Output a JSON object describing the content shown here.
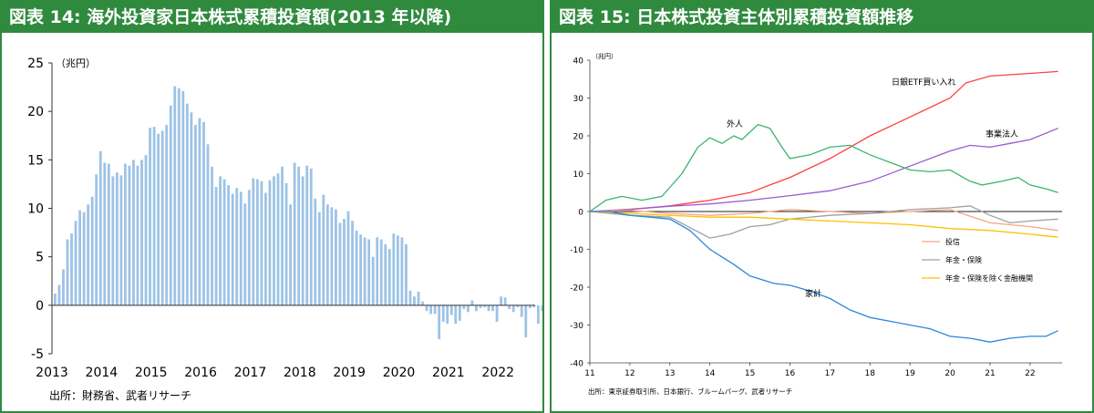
{
  "panels": {
    "left_title": "図表 14: 海外投資家日本株式累積投資額(2013 年以降)",
    "right_title": "図表 15: 日本株式投資主体別累積投資額推移",
    "left_source": "出所：財務省、武者リサーチ",
    "right_source": "出所：東京証券取引所、日本銀行、ブルームバーグ、武者リサーチ"
  },
  "colors": {
    "header_green": "#2f8a3e",
    "bar_blue": "#9dc3e6",
    "line_red": "#ff4040",
    "line_purple": "#9b59d0",
    "line_green": "#3cb371",
    "line_blue": "#2e86de",
    "line_orange": "#f4a582",
    "line_gray": "#a0a0a0",
    "line_yellow": "#ffc000"
  },
  "chart_data": [
    {
      "type": "bar",
      "title": "",
      "unit_label": "（兆円）",
      "ylim": [
        -5,
        25
      ],
      "yticks": [
        -5,
        0,
        5,
        10,
        15,
        20,
        25
      ],
      "xlim": [
        2013,
        2022.75
      ],
      "xticks": [
        "2013",
        "2014",
        "2015",
        "2016",
        "2017",
        "2018",
        "2019",
        "2020",
        "2021",
        "2022"
      ],
      "series": [
        {
          "start": 2013.0,
          "step": 0.08333,
          "values": [
            1.2,
            2.1,
            3.7,
            6.8,
            7.4,
            8.7,
            9.8,
            9.6,
            10.4,
            11.2,
            13.5,
            15.9,
            14.7,
            14.6,
            13.3,
            13.7,
            13.4,
            14.6,
            14.4,
            15.0,
            14.4,
            15.0,
            15.5,
            18.3,
            18.4,
            17.7,
            18.0,
            18.6,
            20.6,
            22.6,
            22.4,
            22.1,
            20.8,
            19.9,
            18.6,
            19.3,
            18.9,
            16.6,
            14.3,
            12.2,
            13.3,
            13.0,
            12.4,
            11.5,
            12.1,
            11.7,
            10.5,
            11.9,
            13.1,
            13.0,
            12.8,
            11.6,
            12.9,
            13.3,
            13.6,
            14.3,
            12.6,
            10.4,
            14.7,
            14.3,
            13.3,
            14.4,
            14.1,
            11.0,
            9.6,
            11.4,
            10.4,
            10.1,
            9.9,
            8.5,
            8.9,
            9.7,
            8.7,
            7.7,
            7.3,
            7.0,
            6.8,
            5.0,
            7.0,
            6.8,
            6.3,
            5.8,
            7.4,
            7.2,
            7.0,
            6.3,
            1.5,
            0.9,
            1.4,
            0.4,
            -0.6,
            -0.9,
            -0.9,
            -3.5,
            -1.7,
            -1.9,
            -1.0,
            -1.9,
            -1.6,
            -0.4,
            -0.7,
            0.5,
            -0.6,
            -0.3,
            -0.2,
            -0.6,
            -0.6,
            -1.7,
            0.9,
            0.8,
            -0.4,
            -0.7,
            -0.2,
            -1.2,
            -3.3,
            -0.3,
            -0.2,
            -1.9,
            -0.6,
            -1.3,
            -1.6
          ]
        }
      ],
      "source": "出所：財務省、武者リサーチ"
    },
    {
      "type": "line",
      "title": "",
      "unit_label": "（兆円）",
      "ylim": [
        -40,
        40
      ],
      "yticks": [
        -40,
        -30,
        -20,
        -10,
        0,
        10,
        20,
        30,
        40
      ],
      "xlim": [
        11,
        22.8
      ],
      "xticks": [
        "11",
        "12",
        "13",
        "14",
        "15",
        "16",
        "17",
        "18",
        "19",
        "20",
        "21",
        "22"
      ],
      "series": [
        {
          "name": "日銀ETF買い入れ",
          "color": "#ff4040",
          "x": [
            11,
            12,
            13,
            14,
            15,
            15.5,
            16,
            17,
            18,
            19,
            20,
            20.4,
            21,
            22,
            22.7
          ],
          "y": [
            0,
            0.5,
            1.5,
            3,
            5,
            7,
            9,
            14,
            20,
            25,
            30,
            34,
            35.8,
            36.5,
            37
          ]
        },
        {
          "name": "事業法人",
          "color": "#9b59d0",
          "x": [
            11,
            12,
            13,
            14,
            15,
            16,
            17,
            18,
            19,
            20,
            20.5,
            21,
            21.5,
            22,
            22.7
          ],
          "y": [
            0,
            0.6,
            1.4,
            2,
            3,
            4.2,
            5.5,
            8,
            12,
            16,
            17.5,
            17,
            18,
            19,
            22
          ]
        },
        {
          "name": "外人",
          "color": "#3cb371",
          "x": [
            11,
            11.4,
            11.8,
            12.3,
            12.8,
            13.3,
            13.7,
            14,
            14.3,
            14.6,
            14.8,
            15,
            15.2,
            15.5,
            15.8,
            16,
            16.5,
            17,
            17.5,
            18,
            18.5,
            19,
            19.5,
            20,
            20.5,
            20.8,
            21.3,
            21.7,
            22,
            22.4,
            22.7
          ],
          "y": [
            0,
            3,
            4,
            3,
            4,
            10,
            17,
            19.5,
            18,
            20,
            19,
            21,
            23,
            22,
            17,
            14,
            15,
            17,
            17.5,
            15,
            13,
            11,
            10.5,
            11,
            8,
            7,
            8,
            9,
            7,
            6,
            5
          ]
        },
        {
          "name": "投信",
          "color": "#f4a582",
          "x": [
            11,
            12,
            13,
            14,
            15,
            16,
            17,
            18,
            19,
            20,
            21,
            22,
            22.7
          ],
          "y": [
            0,
            0.3,
            -0.5,
            -1,
            -0.5,
            0.5,
            0,
            -0.5,
            0,
            0.5,
            -3,
            -4,
            -5
          ]
        },
        {
          "name": "年金・保険",
          "color": "#a0a0a0",
          "x": [
            11,
            12,
            13,
            14,
            14.5,
            15,
            15.5,
            16,
            17,
            18,
            19,
            20,
            20.5,
            21,
            21.5,
            22,
            22.7
          ],
          "y": [
            0,
            -1,
            -1.5,
            -7,
            -6,
            -4,
            -3.5,
            -2,
            -1,
            -0.5,
            0.5,
            1,
            1.5,
            -1,
            -3,
            -2.5,
            -2
          ]
        },
        {
          "name": "年金・保険を除く金融機関",
          "color": "#ffc000",
          "x": [
            11,
            12,
            13,
            14,
            15,
            16,
            17,
            18,
            19,
            20,
            21,
            22,
            22.7
          ],
          "y": [
            0,
            -0.5,
            -1,
            -1.5,
            -1.5,
            -2,
            -2.5,
            -3,
            -3.5,
            -4.5,
            -5,
            -6,
            -6.8
          ]
        },
        {
          "name": "家計",
          "color": "#2e86de",
          "x": [
            11,
            11.5,
            12,
            12.5,
            13,
            13.5,
            14,
            14.3,
            14.6,
            15,
            15.3,
            15.6,
            16,
            16.5,
            17,
            17.5,
            18,
            18.5,
            19,
            19.5,
            20,
            20.5,
            21,
            21.5,
            22,
            22.4,
            22.7
          ],
          "y": [
            0,
            0,
            -1,
            -1.5,
            -2,
            -5,
            -10,
            -12,
            -14,
            -17,
            -18,
            -19,
            -19.5,
            -21,
            -23,
            -26,
            -28,
            -29,
            -30,
            -31,
            -33,
            -33.5,
            -34.5,
            -33.5,
            -33,
            -33,
            -31.5
          ]
        }
      ],
      "source": "出所：東京証券取引所、日本銀行、ブルームバーグ、武者リサーチ"
    }
  ]
}
